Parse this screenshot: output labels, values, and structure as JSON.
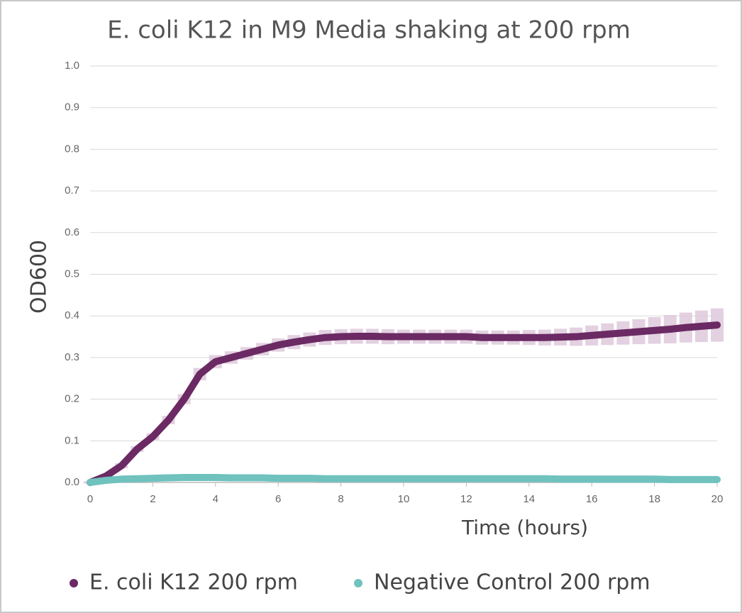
{
  "chart_data": {
    "type": "line",
    "title": "E. coli K12 in M9 Media shaking at 200 rpm",
    "x_label": "Time (hours)",
    "y_label": "OD600",
    "x": [
      0,
      0.5,
      1,
      1.5,
      2,
      2.5,
      3,
      3.5,
      4,
      4.5,
      5,
      5.5,
      6,
      6.5,
      7,
      7.5,
      8,
      8.5,
      9,
      9.5,
      10,
      10.5,
      11,
      11.5,
      12,
      12.5,
      13,
      13.5,
      14,
      14.5,
      15,
      15.5,
      16,
      16.5,
      17,
      17.5,
      18,
      18.5,
      19,
      19.5,
      20
    ],
    "series": [
      {
        "name": "E. coli K12 200 rpm",
        "color": "#6b2a63",
        "error_color": "#dcc6d9",
        "values": [
          0.0,
          0.015,
          0.04,
          0.08,
          0.11,
          0.15,
          0.2,
          0.26,
          0.29,
          0.3,
          0.31,
          0.32,
          0.33,
          0.337,
          0.343,
          0.348,
          0.35,
          0.351,
          0.351,
          0.35,
          0.35,
          0.35,
          0.35,
          0.35,
          0.35,
          0.348,
          0.348,
          0.348,
          0.348,
          0.348,
          0.349,
          0.35,
          0.353,
          0.356,
          0.359,
          0.362,
          0.365,
          0.368,
          0.372,
          0.375,
          0.378
        ],
        "errors": [
          0.003,
          0.005,
          0.006,
          0.007,
          0.008,
          0.01,
          0.012,
          0.015,
          0.016,
          0.015,
          0.015,
          0.015,
          0.016,
          0.017,
          0.017,
          0.018,
          0.018,
          0.018,
          0.018,
          0.018,
          0.017,
          0.017,
          0.017,
          0.017,
          0.017,
          0.017,
          0.017,
          0.017,
          0.018,
          0.019,
          0.02,
          0.022,
          0.024,
          0.026,
          0.028,
          0.03,
          0.032,
          0.034,
          0.036,
          0.038,
          0.04
        ]
      },
      {
        "name": "Negative Control 200 rpm",
        "color": "#6fc2be",
        "values": [
          0.0,
          0.005,
          0.008,
          0.009,
          0.01,
          0.011,
          0.012,
          0.012,
          0.012,
          0.011,
          0.011,
          0.011,
          0.01,
          0.01,
          0.01,
          0.009,
          0.009,
          0.009,
          0.009,
          0.009,
          0.009,
          0.009,
          0.009,
          0.009,
          0.009,
          0.009,
          0.009,
          0.009,
          0.009,
          0.009,
          0.008,
          0.008,
          0.008,
          0.008,
          0.008,
          0.008,
          0.008,
          0.007,
          0.007,
          0.007,
          0.007
        ]
      }
    ],
    "xlim": [
      0,
      20
    ],
    "xticks": [
      0,
      2,
      4,
      6,
      8,
      10,
      12,
      14,
      16,
      18,
      20
    ],
    "ylim": [
      0,
      1
    ],
    "yticks": [
      {
        "value": 0,
        "label": "0.0"
      },
      0.1,
      0.2,
      0.3,
      0.4,
      0.5,
      0.6,
      0.7,
      0.8,
      0.9,
      {
        "value": 1,
        "label": "1.0"
      }
    ],
    "grid": true
  }
}
